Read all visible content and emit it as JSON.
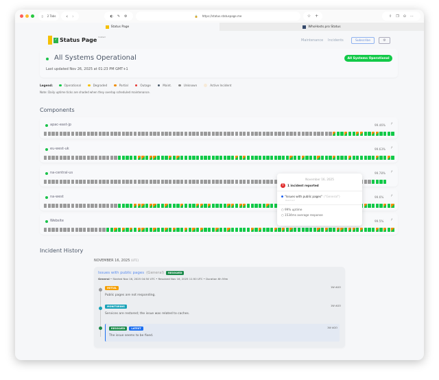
{
  "browser": {
    "tabs_count": "2 Tabs",
    "url": "https://status.statuspage.me",
    "tabs": [
      {
        "label": "Status Page"
      },
      {
        "label": "WhoHosts.pro Status"
      }
    ]
  },
  "header": {
    "logo_text": "Status Page",
    "logo_sup": "hosted",
    "nav": [
      "Maintenance",
      "Incidents"
    ],
    "subscribe": "Subscribe"
  },
  "status": {
    "title": "All Systems Operational",
    "updated": "Last updated Nov 26, 2025 at 01:23 PM GMT+1",
    "badge": "All Systems Operational"
  },
  "legend": {
    "label": "Legend:",
    "items": [
      {
        "label": "Operational",
        "color": "#12c948"
      },
      {
        "label": "Degraded",
        "color": "#f5c000"
      },
      {
        "label": "Partial",
        "color": "#f08c00"
      },
      {
        "label": "Outage",
        "color": "#e53935"
      },
      {
        "label": "Maint.",
        "color": "#4a5a6a"
      },
      {
        "label": "Unknown",
        "color": "#8a8a8a"
      },
      {
        "label": "Active Incident",
        "color": "#f7ead8"
      }
    ],
    "note": "Note: Daily uptime ticks are shaded when they overlap scheduled maintenance."
  },
  "components": {
    "title": "Components",
    "items": [
      {
        "name": "apac-east-jp",
        "uptime": "99.46%",
        "days": "uuuuuuuuuuuuuuuuuuuuuuuuuuuuuuuuuuuuuuuuuuuuuuuuuuuuuuuuuuuuuuuuuuuuuuuuuupoopooppooppoooo"
      },
      {
        "name": "eu-west-uk",
        "uptime": "99.63%",
        "days": "uuuuuuuuuuuuuuuuuuuoooooppoppooopopoooooooooooooopopooooooooooopoopooopooopooopoooooopoopo"
      },
      {
        "name": "na-central-us",
        "uptime": "99.78%",
        "days": "uuuuuuuuuuuuuuuuuuuuuuuuuuuuuuuuuuuuuuuuuuuuuuuuuuuuuuuuuuuuuuuuuuuuuuuuuuuuuuuuuuuuoooo"
      },
      {
        "name": "na-west",
        "uptime": "99.6%",
        "days": "uuuuuuuuuuuuuuuuuuuoooopppoppoopooopoooppopooooppoppooooopoopopoooooooooopppoopooopoooopop"
      },
      {
        "name": "Website",
        "uptime": "99.5%",
        "days": "uuuuuuuuuuuuuuuuoopopopoppoopoopopoopopopooopoopooooopopooopopopoooooopopooppoppopooopopop"
      }
    ]
  },
  "tooltip": {
    "date": "November 16, 2025",
    "incidents": "1 incident reported",
    "incident_title": "\"Issues with public pages\"",
    "incident_group": "(\"General\")",
    "incident_status": "Resolved",
    "uptime": "99% uptime",
    "response": "1534ms average response"
  },
  "history": {
    "title": "Incident History",
    "date": "NOVEMBER 16, 2025",
    "tz": "(UTC)",
    "incident": {
      "title": "Issues with public pages",
      "group": "(General)",
      "badge": "RESOLVED",
      "meta_group": "General",
      "meta": " • Started Nov 16, 2025 04:50 UTC • Resolved Nov 16, 2025 11:50 UTC • Duration 6h 59m",
      "updates": [
        {
          "status": "INITIAL",
          "color": "#f59f00",
          "dot": "#999",
          "time": "1W AGO",
          "text": "Public pages are not responding."
        },
        {
          "status": "MONITORING",
          "color": "#17a2b8",
          "dot": "#17a2b8",
          "time": "1W AGO",
          "text": "Services are restored; the issue was related to caches."
        },
        {
          "status": "RESOLVED",
          "color": "#1a8a4a",
          "dot": "#1a8a4a",
          "time": "1W AGO",
          "text": "The issue seems to be fixed.",
          "latest": "LATEST"
        }
      ]
    }
  }
}
